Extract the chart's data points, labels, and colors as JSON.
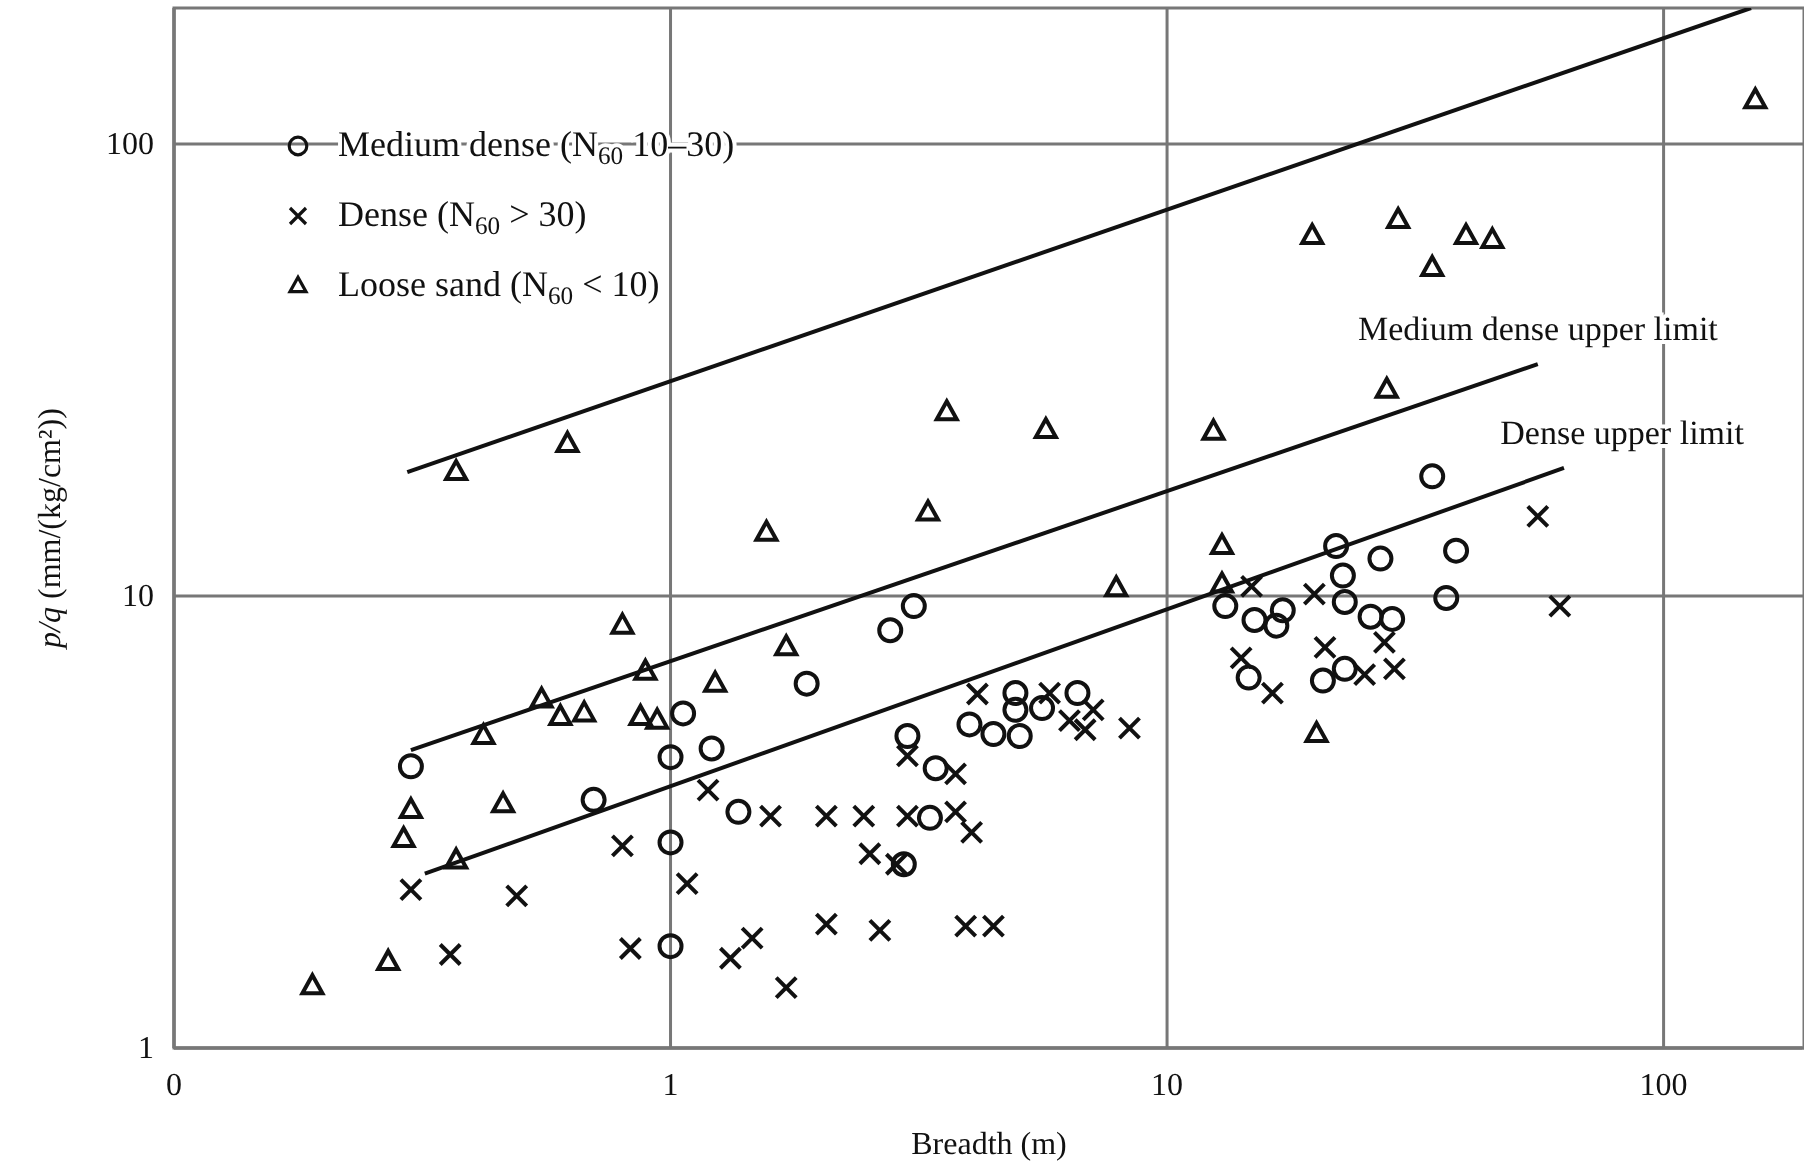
{
  "chart_data": {
    "type": "scatter",
    "xlabel": "Breadth (m)",
    "ylabel": "p/q (mm/(kg/cm²))",
    "log": "xy",
    "grid": true,
    "legend": "top left",
    "xlim": [
      0.1,
      190
    ],
    "ylim": [
      1,
      200
    ],
    "xticks": [
      {
        "value": 0.1,
        "label": "0"
      },
      1,
      10,
      100
    ],
    "yticks": [
      1,
      10,
      100
    ],
    "series": [
      {
        "name": "Medium dense (N$_{60}$ 10–30)",
        "color": "#111111",
        "marker": "circle",
        "x": [
          0.3,
          0.7,
          1.06,
          1.0,
          1.21,
          1.0,
          1.0,
          1.37,
          1.88,
          2.77,
          3.09,
          3.0,
          2.95,
          3.42,
          3.33,
          4.0,
          4.47,
          5.05,
          4.95,
          4.95,
          5.6,
          6.6,
          13.1,
          15.0,
          16.6,
          17.1,
          22.6,
          22.8,
          25.7,
          28.4,
          21.9,
          26.9,
          38.2,
          34.2,
          36.5,
          14.6,
          20.6,
          22.8
        ],
        "values": [
          4.2,
          3.54,
          5.5,
          4.4,
          4.6,
          2.85,
          1.68,
          3.33,
          6.4,
          8.4,
          9.5,
          4.9,
          2.55,
          4.16,
          3.23,
          5.2,
          4.95,
          4.9,
          6.1,
          5.6,
          5.65,
          6.1,
          9.5,
          8.85,
          8.6,
          9.3,
          11.1,
          9.7,
          9.0,
          8.9,
          12.9,
          12.1,
          12.6,
          18.4,
          9.9,
          6.6,
          6.5,
          6.9
        ]
      },
      {
        "name": "Dense (N$_{60}$ > 30)",
        "color": "#111111",
        "marker": "cross",
        "x": [
          0.3,
          0.36,
          0.49,
          0.8,
          0.83,
          1.08,
          1.19,
          1.32,
          1.46,
          1.59,
          1.71,
          2.06,
          2.06,
          2.45,
          2.52,
          2.64,
          2.85,
          3.0,
          3.0,
          3.75,
          3.75,
          4.04,
          3.93,
          4.47,
          4.15,
          5.8,
          6.36,
          6.84,
          7.1,
          8.4,
          14.8,
          19.8,
          14.1,
          16.3,
          20.8,
          25.0,
          27.4,
          28.7,
          61.8,
          55.8
        ],
        "values": [
          2.24,
          1.61,
          2.17,
          2.8,
          1.66,
          2.31,
          3.72,
          1.58,
          1.75,
          3.26,
          1.36,
          3.26,
          1.88,
          3.26,
          2.69,
          1.82,
          2.55,
          3.26,
          4.43,
          4.04,
          3.33,
          3.0,
          1.86,
          1.86,
          6.07,
          6.1,
          5.3,
          5.06,
          5.6,
          5.1,
          10.5,
          10.1,
          7.3,
          6.1,
          7.7,
          6.7,
          7.9,
          6.9,
          9.5,
          15.0
        ]
      },
      {
        "name": "Loose sand (N$_{60}$ < 10)",
        "color": "#111111",
        "marker": "triangle",
        "x": [
          0.19,
          0.27,
          0.3,
          0.29,
          0.37,
          0.37,
          0.42,
          0.46,
          0.55,
          0.6,
          0.62,
          0.67,
          0.8,
          0.89,
          0.87,
          0.94,
          1.23,
          1.56,
          1.71,
          3.3,
          3.6,
          5.7,
          7.9,
          12.4,
          12.9,
          12.9,
          19.6,
          29.2,
          34.2,
          40,
          45.2,
          20,
          153,
          27.7
        ],
        "values": [
          1.37,
          1.55,
          3.36,
          2.9,
          2.6,
          18.8,
          4.9,
          3.46,
          5.9,
          5.4,
          21.7,
          5.5,
          8.6,
          6.8,
          5.4,
          5.3,
          6.4,
          13.8,
          7.7,
          15.3,
          25.5,
          23.3,
          10.4,
          23.1,
          12.9,
          10.6,
          62.6,
          67.9,
          53.2,
          62.6,
          61.3,
          4.95,
          125,
          28.6
        ]
      },
      {
        "type": "line",
        "color": "#111111",
        "x": [
          0.295,
          150
        ],
        "values": [
          18.8,
          200
        ]
      },
      {
        "type": "line",
        "name": "Medium dense upper limit",
        "color": "#111111",
        "x": [
          0.3,
          55.8
        ],
        "values": [
          4.56,
          32.6
        ]
      },
      {
        "type": "line",
        "name": "Dense upper limit",
        "color": "#111111",
        "x": [
          0.32,
          63
        ],
        "values": [
          2.43,
          19.2
        ]
      }
    ]
  }
}
